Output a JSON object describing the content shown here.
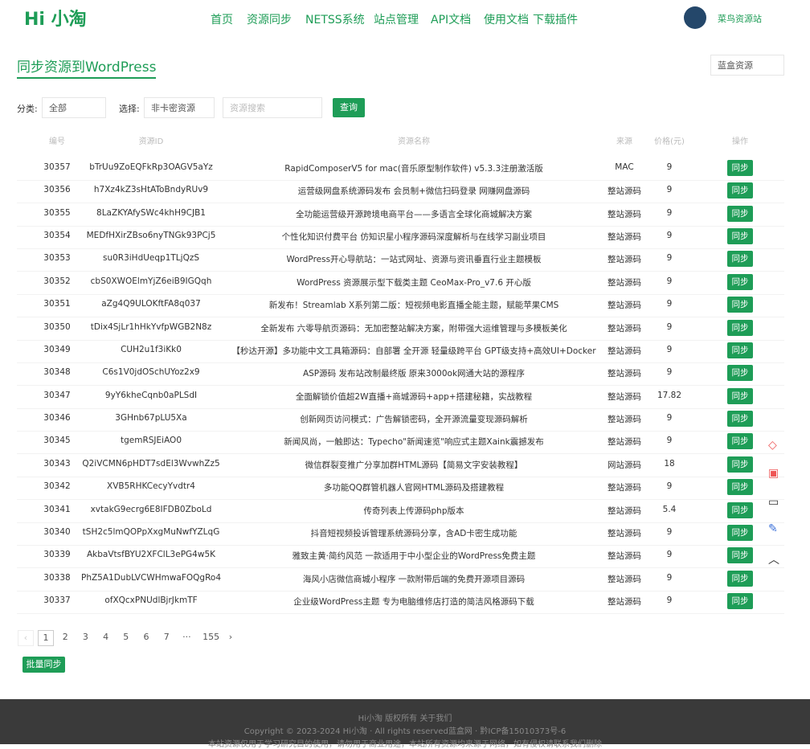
{
  "header": {
    "logo": "Hi 小淘",
    "nav": [
      "首页",
      "资源同步",
      "NETSS系统",
      "站点管理",
      "API文档",
      "使用文档",
      "下载插件"
    ],
    "user": "菜鸟资源站"
  },
  "page": {
    "title": "同步资源到WordPress",
    "site_select": "蓝盒资源"
  },
  "filters": {
    "category_label": "分类:",
    "category_value": "全部",
    "choose_label": "选择:",
    "choose_value": "非卡密资源",
    "search_placeholder": "资源搜索",
    "query_button": "查询"
  },
  "table": {
    "columns": [
      "编号",
      "资源ID",
      "资源名称",
      "来源",
      "价格(元)",
      "操作"
    ],
    "rows": [
      [
        30357,
        "bTrUu9ZoEQFkRp3OAGV5aYz",
        "RapidComposerV5 for mac(音乐原型制作软件) v5.3.3注册激活版",
        "MAC",
        9,
        "同步"
      ],
      [
        30356,
        "h7Xz4kZ3sHtAToBndyRUv9",
        "运营级网盘系统源码发布 会员制+微信扫码登录 网赚网盘源码",
        "整站源码",
        9,
        "同步"
      ],
      [
        30355,
        "8LaZKYAfySWc4khH9CJB1",
        "全功能运营级开源跨境电商平台——多语言全球化商城解决方案",
        "整站源码",
        9,
        "同步"
      ],
      [
        30354,
        "MEDfHXirZBso6nyTNGk93PCj5",
        "个性化知识付费平台 仿知识星小程序源码深度解析与在线学习副业项目",
        "整站源码",
        9,
        "同步"
      ],
      [
        30353,
        "su0R3iHdUeqp1TLjQzS",
        "WordPress开心导航站：一站式网址、资源与资讯垂直行业主题模板",
        "整站源码",
        9,
        "同步"
      ],
      [
        30352,
        "cbS0XWOElmYjZ6eiB9IGQqh",
        "WordPress 资源展示型下载类主题 CeoMax-Pro_v7.6 开心版",
        "整站源码",
        9,
        "同步"
      ],
      [
        30351,
        "aZg4Q9ULOKftFA8q037",
        "新发布！Streamlab X系列第二版：短视频电影直播全能主题，赋能苹果CMS",
        "整站源码",
        9,
        "同步"
      ],
      [
        30350,
        "tDix4SjLr1hHkYvfpWGB2N8z",
        "全新发布 六零导航页源码：无加密整站解决方案，附带强大运维管理与多模板美化",
        "整站源码",
        9,
        "同步"
      ],
      [
        30349,
        "CUH2u1f3iKk0",
        "【秒达开源】多功能中文工具箱源码：自部署 全开源 轻量级跨平台 GPT级支持+高效UI+Docker",
        "整站源码",
        9,
        "同步"
      ],
      [
        30348,
        "C6s1V0jdOSchUYoz2x9",
        "ASP源码 发布站改制最终版 原来3000ok网通大站的源程序",
        "整站源码",
        9,
        "同步"
      ],
      [
        30347,
        "9yY6kheCqnb0aPLSdI",
        "全面解锁价值超2W直播+商城源码+app+搭建秘籍，实战教程",
        "整站源码",
        17.82,
        "同步"
      ],
      [
        30346,
        "3GHnb67pLU5Xa",
        "创新网页访问模式：广告解锁密码，全开源流量变现源码解析",
        "整站源码",
        9,
        "同步"
      ],
      [
        30345,
        "tgemRSJEiAO0",
        "新闻风尚，一触即达：Typecho\"新闻速览\"响应式主题Xaink震撼发布",
        "整站源码",
        9,
        "同步"
      ],
      [
        30343,
        "Q2iVCMN6pHDT7sdEl3WvwhZz5",
        "微信群裂变推广分享加群HTML源码【简易文字安装教程】",
        "网站源码",
        18,
        "同步"
      ],
      [
        30342,
        "XVB5RHKCecyYvdtr4",
        "多功能QQ群管机器人官网HTML源码及搭建教程",
        "整站源码",
        9,
        "同步"
      ],
      [
        30341,
        "xvtakG9ecrg6E8IFDB0ZboLd",
        "传奇列表上传源码php版本",
        "整站源码",
        5.4,
        "同步"
      ],
      [
        30340,
        "tSH2c5lmQOPpXxgMuNwfYZLqG",
        "抖音短视频投诉管理系统源码分享，含AD卡密生成功能",
        "整站源码",
        9,
        "同步"
      ],
      [
        30339,
        "AkbaVtsfBYU2XFClL3ePG4w5K",
        "雅致主黄·简约风范 一款适用于中小型企业的WordPress免费主题",
        "整站源码",
        9,
        "同步"
      ],
      [
        30338,
        "PhZ5A1DubLVCWHmwaFOQgRo4",
        "海风小店微信商城小程序 一款附带后端的免费开源项目源码",
        "整站源码",
        9,
        "同步"
      ],
      [
        30337,
        "ofXQcxPNUdlBjrJkmTF",
        "企业级WordPress主题 专为电脑维修店打造的简洁风格源码下载",
        "整站源码",
        9,
        "同步"
      ]
    ]
  },
  "pagination": [
    1,
    2,
    3,
    4,
    5,
    6,
    7,
    "···",
    155
  ],
  "batch_button": "批量同步",
  "footer": {
    "line1": "Hi小淘 版权所有 关于我们",
    "line2": "Copyright © 2023-2024 Hi小淘 · All rights reserved蓝盒网 · 黔ICP备15010373号-6",
    "line3": "本站资源仅用于学习研究目的使用，请勿用于商业用途，本站所有资源均来源于网络，如有侵权请联系我们删除"
  }
}
